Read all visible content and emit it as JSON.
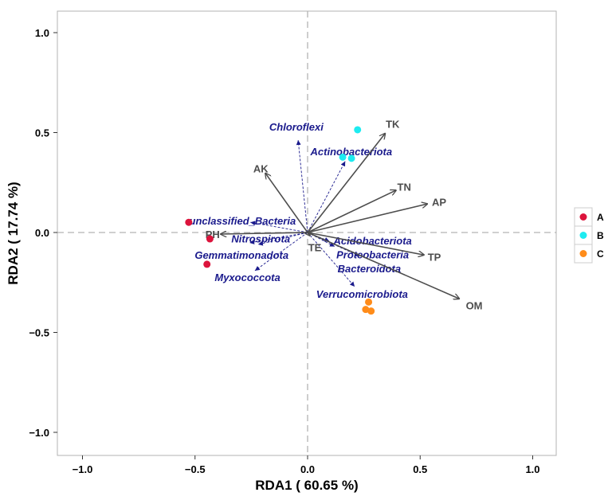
{
  "chart_data": {
    "type": "scatter",
    "subtype": "rda-biplot",
    "xlabel": "RDA1 ( 60.65 %)",
    "ylabel": "RDA2 ( 17.74 %)",
    "xlim": [
      -1.12,
      1.12
    ],
    "ylim": [
      -1.11,
      1.11
    ],
    "xticks": [
      -1.0,
      -0.5,
      0.0,
      0.5,
      1.0
    ],
    "xtick_labels": [
      "−1.0",
      "−0.5",
      "0.0",
      "0.5",
      "1.0"
    ],
    "yticks": [
      -1.0,
      -0.5,
      0.0,
      0.5,
      1.0
    ],
    "ytick_labels": [
      "−1.0",
      "−0.5",
      "0.0",
      "0.5",
      "1.0"
    ],
    "grid": false,
    "legend_position": "right",
    "groups": [
      {
        "name": "A",
        "color": "#DC143C",
        "points": [
          [
            -0.528,
            0.051
          ],
          [
            -0.434,
            -0.032
          ],
          [
            -0.447,
            -0.159
          ]
        ]
      },
      {
        "name": "B",
        "color": "#1EEBF0",
        "points": [
          [
            0.222,
            0.514
          ],
          [
            0.156,
            0.377
          ],
          [
            0.195,
            0.371
          ]
        ]
      },
      {
        "name": "C",
        "color": "#FF8C1A",
        "points": [
          [
            0.271,
            -0.348
          ],
          [
            0.258,
            -0.385
          ],
          [
            0.282,
            -0.393
          ]
        ]
      }
    ],
    "environment_arrows": [
      {
        "name": "TK",
        "x": 0.344,
        "y": 0.495,
        "label_x": 0.378,
        "label_y": 0.543
      },
      {
        "name": "AK",
        "x": -0.187,
        "y": 0.296,
        "label_x": -0.208,
        "label_y": 0.32
      },
      {
        "name": "TN",
        "x": 0.392,
        "y": 0.211,
        "label_x": 0.429,
        "label_y": 0.23
      },
      {
        "name": "AP",
        "x": 0.531,
        "y": 0.143,
        "label_x": 0.584,
        "label_y": 0.154
      },
      {
        "name": "PH",
        "x": -0.385,
        "y": -0.008,
        "label_x": -0.422,
        "label_y": -0.008
      },
      {
        "name": "TE",
        "x": 0.01,
        "y": -0.015,
        "label_x": 0.032,
        "label_y": -0.074
      },
      {
        "name": "TP",
        "x": 0.516,
        "y": -0.112,
        "label_x": 0.563,
        "label_y": -0.122
      },
      {
        "name": "OM",
        "x": 0.673,
        "y": -0.331,
        "label_x": 0.74,
        "label_y": -0.364
      }
    ],
    "species_arrows": [
      {
        "name": "Chloroflexi",
        "x": -0.042,
        "y": 0.462,
        "label_x": -0.05,
        "label_y": 0.526
      },
      {
        "name": "Actinobacteriota",
        "x": 0.167,
        "y": 0.356,
        "label_x": 0.194,
        "label_y": 0.402
      },
      {
        "name": "unclassified_Bacteria",
        "x": -0.254,
        "y": 0.051,
        "label_x": -0.289,
        "label_y": 0.055
      },
      {
        "name": "Nitrospirota",
        "x": -0.258,
        "y": -0.052,
        "label_x": -0.293,
        "label_y": -0.065
      },
      {
        "name": "Gemmatimonadota",
        "x": -0.22,
        "y": -0.06,
        "label_x": -0.293,
        "label_y": -0.092
      },
      {
        "name": "Myxococcota",
        "x": -0.234,
        "y": -0.191,
        "label_x": -0.267,
        "label_y": -0.227
      },
      {
        "name": "Acidobacteriota",
        "x": 0.097,
        "y": -0.044,
        "label_x": 0.289,
        "label_y": -0.056
      },
      {
        "name": "Proteobacteria",
        "x": 0.12,
        "y": -0.07,
        "label_x": 0.289,
        "label_y": -0.102
      },
      {
        "name": "Bacteroidota",
        "x": 0.23,
        "y": -0.118,
        "label_x": 0.274,
        "label_y": -0.184
      },
      {
        "name": "Verrucomicrobiota",
        "x": 0.209,
        "y": -0.271,
        "label_x": 0.242,
        "label_y": -0.311
      }
    ],
    "colors": {
      "env_arrow": "#4D4D4D",
      "species": "#1A1A8C",
      "zero_line": "#B3B3B3"
    }
  }
}
